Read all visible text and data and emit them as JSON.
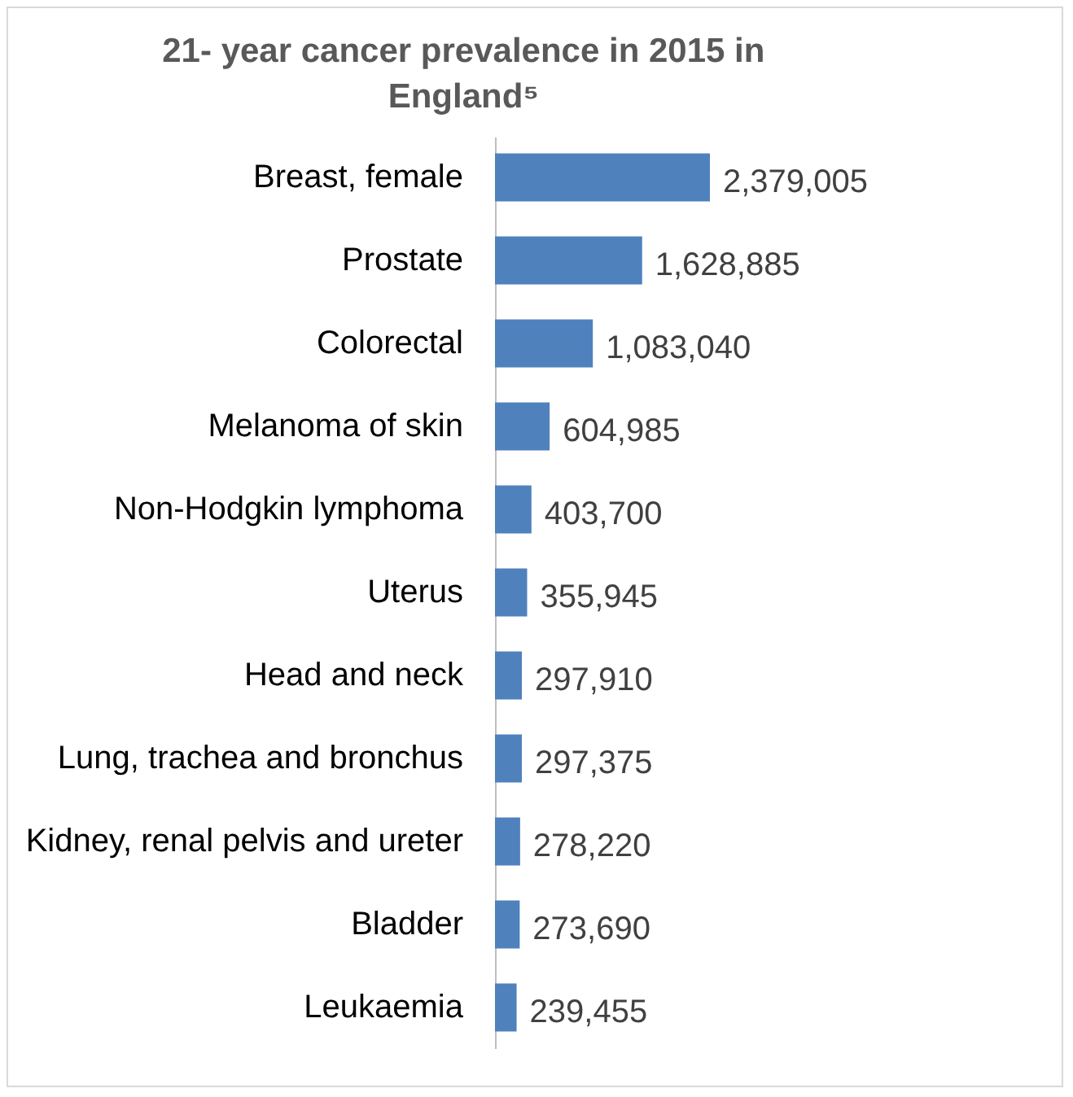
{
  "chart_data": {
    "type": "bar",
    "orientation": "horizontal",
    "title": "21- year cancer prevalence in 2015 in England⁵",
    "categories": [
      "Breast, female",
      "Prostate",
      "Colorectal",
      "Melanoma of skin",
      "Non-Hodgkin lymphoma",
      "Uterus",
      "Head and neck",
      "Lung, trachea and bronchus",
      "Kidney, renal pelvis and ureter",
      "Bladder",
      "Leukaemia"
    ],
    "values": [
      2379005,
      1628885,
      1083040,
      604985,
      403700,
      355945,
      297910,
      297375,
      278220,
      273690,
      239455
    ],
    "color": "#4f81bd",
    "tick_labels": "y",
    "value_labels": [
      "2,379,005",
      "1,628,885",
      "1,083,040",
      "604,985",
      "403,700",
      "355,945",
      "297,910",
      "297,375",
      "278,220",
      "273,690",
      "239,455"
    ]
  }
}
